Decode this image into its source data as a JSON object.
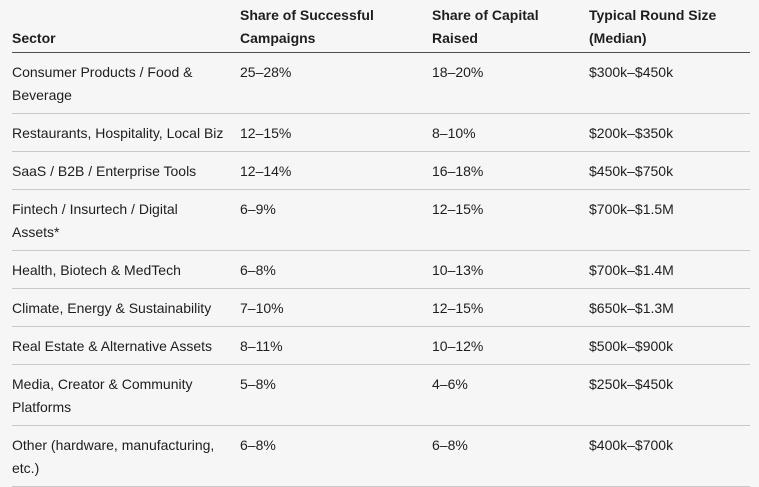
{
  "page": {
    "background": "#f6f6f7"
  },
  "colors": {
    "text": "#1e1e1e",
    "header_rule": "#4f4f4f",
    "row_rule": "#c9c9c9"
  },
  "chart_data": {
    "type": "table",
    "title": "",
    "columns": [
      "Sector",
      "Share of Successful Campaigns",
      "Share of Capital Raised",
      "Typical Round Size (Median)"
    ],
    "rows": [
      [
        "Consumer Products / Food & Beverage",
        "25–28%",
        "18–20%",
        "$300k–$450k"
      ],
      [
        "Restaurants, Hospitality, Local Biz",
        "12–15%",
        "8–10%",
        "$200k–$350k"
      ],
      [
        "SaaS / B2B / Enterprise Tools",
        "12–14%",
        "16–18%",
        "$450k–$750k"
      ],
      [
        "Fintech / Insurtech / Digital Assets*",
        "6–9%",
        "12–15%",
        "$700k–$1.5M"
      ],
      [
        "Health, Biotech & MedTech",
        "6–8%",
        "10–13%",
        "$700k–$1.4M"
      ],
      [
        "Climate, Energy & Sustainability",
        "7–10%",
        "12–15%",
        "$650k–$1.3M"
      ],
      [
        "Real Estate & Alternative Assets",
        "8–11%",
        "10–12%",
        "$500k–$900k"
      ],
      [
        "Media, Creator & Community Platforms",
        "5–8%",
        "4–6%",
        "$250k–$450k"
      ],
      [
        "Other (hardware, manufacturing, etc.)",
        "6–8%",
        "6–8%",
        "$400k–$700k"
      ]
    ]
  },
  "table": {
    "headers": [
      {
        "lines": [
          "Sector"
        ]
      },
      {
        "lines": [
          "Share of Successful",
          "Campaigns"
        ]
      },
      {
        "lines": [
          "Share of Capital",
          "Raised"
        ]
      },
      {
        "lines": [
          "Typical Round Size",
          "(Median)"
        ]
      }
    ],
    "rows": [
      {
        "sector_lines": [
          "Consumer Products / Food &",
          "Beverage"
        ],
        "success": "25–28%",
        "capital": "18–20%",
        "round": "$300k–$450k"
      },
      {
        "sector_lines": [
          "Restaurants, Hospitality, Local Biz"
        ],
        "success": "12–15%",
        "capital": "8–10%",
        "round": "$200k–$350k"
      },
      {
        "sector_lines": [
          "SaaS / B2B / Enterprise Tools"
        ],
        "success": "12–14%",
        "capital": "16–18%",
        "round": "$450k–$750k"
      },
      {
        "sector_lines": [
          "Fintech / Insurtech / Digital",
          "Assets*"
        ],
        "success": "6–9%",
        "capital": "12–15%",
        "round": "$700k–$1.5M"
      },
      {
        "sector_lines": [
          "Health, Biotech & MedTech"
        ],
        "success": "6–8%",
        "capital": "10–13%",
        "round": "$700k–$1.4M"
      },
      {
        "sector_lines": [
          "Climate, Energy & Sustainability"
        ],
        "success": "7–10%",
        "capital": "12–15%",
        "round": "$650k–$1.3M"
      },
      {
        "sector_lines": [
          "Real Estate & Alternative Assets"
        ],
        "success": "8–11%",
        "capital": "10–12%",
        "round": "$500k–$900k"
      },
      {
        "sector_lines": [
          "Media, Creator & Community",
          "Platforms"
        ],
        "success": "5–8%",
        "capital": "4–6%",
        "round": "$250k–$450k"
      },
      {
        "sector_lines": [
          "Other (hardware, manufacturing,",
          "etc.)"
        ],
        "success": "6–8%",
        "capital": "6–8%",
        "round": "$400k–$700k"
      }
    ]
  }
}
